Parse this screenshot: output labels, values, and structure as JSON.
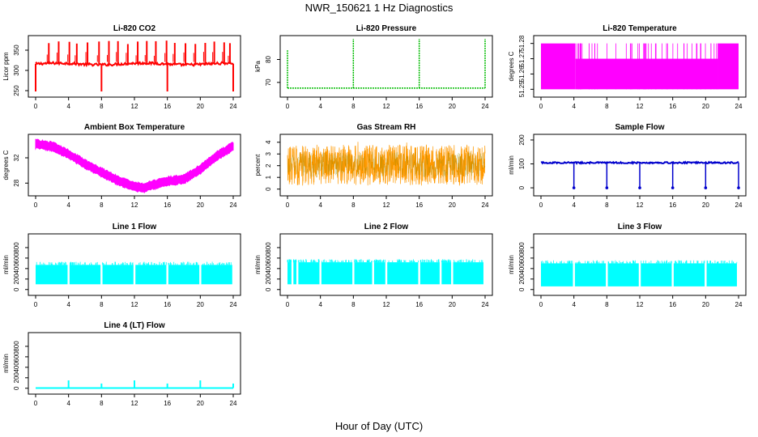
{
  "figure": {
    "title": "NWR_150621  1 Hz Diagnostics",
    "xlabel": "Hour of Day (UTC)"
  },
  "chart_data": [
    {
      "type": "line",
      "title": "Li-820 CO2",
      "ylabel": "Licor ppm",
      "color": "#ff0000",
      "x_ticks": [
        "0",
        "4",
        "8",
        "12",
        "16",
        "20",
        "24"
      ],
      "xlim": [
        0,
        24
      ],
      "y_ticks": [
        "250",
        "300",
        "350"
      ],
      "ylim": [
        242,
        378
      ],
      "baseline": 316,
      "spikes_up": [
        1.6,
        2.8,
        4.1,
        5.0,
        6.3,
        7.7,
        8.9,
        10.0,
        11.2,
        12.4,
        13.5,
        14.6,
        15.9,
        16.9,
        18.2,
        19.4,
        20.6,
        21.7,
        22.9,
        23.6
      ],
      "spike_max": 375,
      "dips_down": [
        0.0,
        8.0,
        16.0,
        24.0
      ],
      "dip_min": 248
    },
    {
      "type": "line",
      "title": "Li-820 Pressure",
      "ylabel": "kPa",
      "color": "#00bb00",
      "x_ticks": [
        "0",
        "4",
        "8",
        "12",
        "16",
        "20",
        "24"
      ],
      "xlim": [
        0,
        24
      ],
      "y_ticks": [
        "70",
        "80"
      ],
      "ylim": [
        65,
        89
      ],
      "baseline": 67.5,
      "spikes": [
        {
          "x": 0.0,
          "y": 84
        },
        {
          "x": 8.0,
          "y": 89
        },
        {
          "x": 16.0,
          "y": 89
        },
        {
          "x": 24.0,
          "y": 89
        }
      ]
    },
    {
      "type": "line",
      "title": "Li-820 Temperature",
      "ylabel": "degrees C",
      "color": "#ff00ff",
      "x_ticks": [
        "0",
        "4",
        "8",
        "12",
        "16",
        "20",
        "24"
      ],
      "xlim": [
        0,
        24
      ],
      "y_ticks": [
        "51.25",
        "51.26",
        "51.27",
        "51.28"
      ],
      "ylim": [
        51.247,
        51.283
      ],
      "levels": [
        51.25,
        51.27,
        51.28
      ],
      "full_band_until": 4.2,
      "full_band_from": 21.5
    },
    {
      "type": "line",
      "title": "Ambient Box Temperature",
      "ylabel": "degrees C",
      "color": "#ff00ff",
      "x_ticks": [
        "0",
        "4",
        "8",
        "12",
        "16",
        "20",
        "24"
      ],
      "xlim": [
        0,
        24
      ],
      "y_ticks": [
        "28",
        "32"
      ],
      "ylim": [
        26.5,
        35.2
      ],
      "points": [
        [
          0,
          34.2
        ],
        [
          2,
          33.8
        ],
        [
          4,
          32.6
        ],
        [
          6,
          31.0
        ],
        [
          8,
          29.7
        ],
        [
          10,
          28.4
        ],
        [
          12,
          27.5
        ],
        [
          13,
          27.2
        ],
        [
          14,
          27.6
        ],
        [
          16,
          28.3
        ],
        [
          18,
          28.6
        ],
        [
          20,
          30.2
        ],
        [
          22,
          32.3
        ],
        [
          24,
          33.8
        ]
      ]
    },
    {
      "type": "line",
      "title": "Gas Stream RH",
      "ylabel": "percent",
      "color": "#ff9900",
      "overlay_color": "#888800",
      "x_ticks": [
        "0",
        "4",
        "8",
        "12",
        "16",
        "20",
        "24"
      ],
      "xlim": [
        0,
        24
      ],
      "y_ticks": [
        "0",
        "1",
        "2",
        "3",
        "4"
      ],
      "ylim": [
        -0.3,
        4.4
      ],
      "band_low": 0.3,
      "band_high": 3.8
    },
    {
      "type": "line",
      "title": "Sample Flow",
      "ylabel": "ml/min",
      "color": "#0000cc",
      "x_ticks": [
        "0",
        "4",
        "8",
        "12",
        "16",
        "20",
        "24"
      ],
      "xlim": [
        0,
        24
      ],
      "y_ticks": [
        "0",
        "100",
        "200"
      ],
      "ylim": [
        -20,
        210
      ],
      "baseline": 105,
      "dips": [
        4.0,
        8.0,
        12.0,
        16.0,
        20.0,
        24.0
      ],
      "dip_min": 0
    },
    {
      "type": "line",
      "title": "Line 1 Flow",
      "ylabel": "ml/min",
      "color": "#00ffff",
      "x_ticks": [
        "0",
        "4",
        "8",
        "12",
        "16",
        "20",
        "24"
      ],
      "xlim": [
        0,
        24
      ],
      "y_ticks": [
        "0",
        "200",
        "400",
        "600",
        "800"
      ],
      "ylim": [
        -50,
        1000
      ],
      "band_low": 100,
      "band_high": 470,
      "gaps": [
        4.0,
        8.0,
        12.0,
        16.0,
        20.0,
        24.0
      ]
    },
    {
      "type": "line",
      "title": "Line 2 Flow",
      "ylabel": "ml/min",
      "color": "#00ffff",
      "x_ticks": [
        "0",
        "4",
        "8",
        "12",
        "16",
        "20",
        "24"
      ],
      "xlim": [
        0,
        24
      ],
      "y_ticks": [
        "0",
        "200",
        "400",
        "600",
        "800"
      ],
      "ylim": [
        -50,
        1000
      ],
      "band_low": 100,
      "band_high": 520,
      "gaps": [
        0.6,
        1.2,
        4.0,
        8.0,
        10.4,
        12.0,
        16.0,
        18.6,
        20.0
      ]
    },
    {
      "type": "line",
      "title": "Line 3 Flow",
      "ylabel": "ml/min",
      "color": "#00ffff",
      "x_ticks": [
        "0",
        "4",
        "8",
        "12",
        "16",
        "20",
        "24"
      ],
      "xlim": [
        0,
        24
      ],
      "y_ticks": [
        "0",
        "200",
        "400",
        "600",
        "800"
      ],
      "ylim": [
        -50,
        1000
      ],
      "band_low": 60,
      "band_high": 500,
      "gaps": [
        4.0,
        8.0,
        12.0,
        16.0,
        20.0
      ]
    },
    {
      "type": "line",
      "title": "Line 4 (LT) Flow",
      "ylabel": "ml/min",
      "color": "#00ffff",
      "x_ticks": [
        "0",
        "4",
        "8",
        "12",
        "16",
        "20",
        "24"
      ],
      "xlim": [
        0,
        24
      ],
      "y_ticks": [
        "0",
        "200",
        "400",
        "600",
        "800"
      ],
      "ylim": [
        -50,
        1000
      ],
      "baseline": 5,
      "spikes": [
        {
          "x": 4.0,
          "y": 150
        },
        {
          "x": 8.0,
          "y": 90
        },
        {
          "x": 12.0,
          "y": 150
        },
        {
          "x": 16.0,
          "y": 90
        },
        {
          "x": 20.0,
          "y": 150
        },
        {
          "x": 24.0,
          "y": 90
        }
      ]
    }
  ]
}
